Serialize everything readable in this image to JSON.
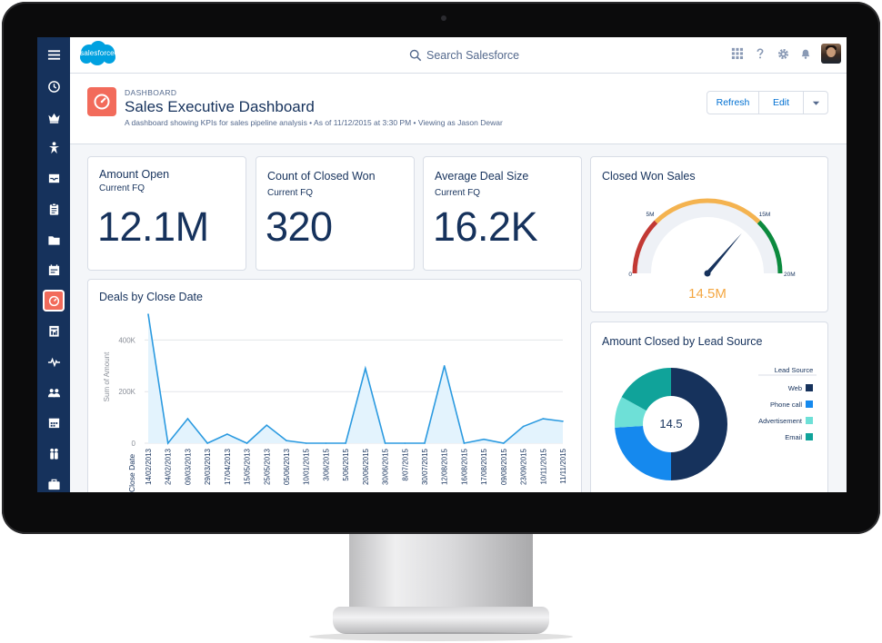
{
  "app": {
    "logo_text": "salesforce",
    "search_placeholder": "Search Salesforce"
  },
  "sidebar": {
    "items": [
      {
        "icon": "hamburger-menu-icon"
      },
      {
        "icon": "clock-icon"
      },
      {
        "icon": "crown-icon"
      },
      {
        "icon": "person-star-icon"
      },
      {
        "icon": "inbox-icon"
      },
      {
        "icon": "clipboard-icon"
      },
      {
        "icon": "folder-icon"
      },
      {
        "icon": "calendar-board-icon"
      },
      {
        "icon": "dashboard-gauge-icon",
        "active": true
      },
      {
        "icon": "report-icon"
      },
      {
        "icon": "pulse-icon"
      },
      {
        "icon": "people-icon"
      },
      {
        "icon": "calendar-icon"
      },
      {
        "icon": "group-icon"
      },
      {
        "icon": "briefcase-icon"
      }
    ]
  },
  "header": {
    "kicker": "DASHBOARD",
    "title": "Sales Executive Dashboard",
    "subtitle": "A dashboard showing KPIs for sales pipeline analysis  • As of 11/12/2015 at 3:30 PM  • Viewing as Jason Dewar",
    "buttons": {
      "refresh": "Refresh",
      "edit": "Edit"
    }
  },
  "metrics": [
    {
      "title": "Amount Open",
      "subtitle": "Current FQ",
      "value": "12.1M"
    },
    {
      "title": "Count of Closed Won",
      "subtitle": "Current FQ",
      "value": "320"
    },
    {
      "title": "Average Deal Size",
      "subtitle": "Current FQ",
      "value": "16.2K"
    }
  ],
  "gauge": {
    "title": "Closed Won Sales",
    "value_label": "14.5M",
    "value": 14.5,
    "min": 0,
    "max": 20,
    "ticks": [
      {
        "v": 0,
        "label": "0"
      },
      {
        "v": 5,
        "label": "5M"
      },
      {
        "v": 15,
        "label": "15M"
      },
      {
        "v": 20,
        "label": "20M"
      }
    ],
    "bands": [
      {
        "from": 0,
        "to": 5,
        "color": "#c23934"
      },
      {
        "from": 5,
        "to": 15,
        "color": "#f4b350"
      },
      {
        "from": 15,
        "to": 20,
        "color": "#0c8a3e"
      }
    ],
    "value_color": "#f4a742"
  },
  "line_chart": {
    "title": "Deals by Close Date",
    "chart_data": {
      "type": "area",
      "title": "Deals by Close Date",
      "xlabel": "Close Date",
      "ylabel": "Sum of Amount",
      "ylim": [
        0,
        500000
      ],
      "yticks": [
        {
          "v": 0,
          "label": "0"
        },
        {
          "v": 200000,
          "label": "200K"
        },
        {
          "v": 400000,
          "label": "400K"
        }
      ],
      "grid": true,
      "categories": [
        "14/02/2013",
        "24/02/2013",
        "09/03/2013",
        "29/03/2013",
        "17/04/2013",
        "15/05/2013",
        "25/05/2013",
        "05/06/2013",
        "10/01/2015",
        "3/06/2015",
        "5/06/2015",
        "20/06/2015",
        "30/06/2015",
        "8/07/2015",
        "30/07/2015",
        "12/08/2015",
        "16/08/2015",
        "17/08/2015",
        "09/08/2015",
        "23/09/2015",
        "10/11/2015",
        "11/11/2015"
      ],
      "series": [
        {
          "values": [
            500000,
            0,
            95000,
            0,
            35000,
            0,
            70000,
            10000,
            0,
            0,
            0,
            290000,
            0,
            0,
            0,
            300000,
            0,
            15000,
            0,
            65000,
            95000,
            85000
          ]
        }
      ],
      "color": "#2b9ae0"
    }
  },
  "donut": {
    "title": "Amount Closed by Lead Source",
    "center_label": "14.5",
    "legend_title": "Lead Source",
    "chart_data": {
      "type": "pie",
      "title": "Amount Closed by Lead Source",
      "legend_position": "right",
      "slices": [
        {
          "label": "Web",
          "value": 50,
          "color": "#16325c"
        },
        {
          "label": "Phone call",
          "value": 24,
          "color": "#1589ee"
        },
        {
          "label": "Advertisement",
          "value": 9,
          "color": "#6ee0d7"
        },
        {
          "label": "Email",
          "value": 17,
          "color": "#10a39a"
        }
      ]
    }
  }
}
